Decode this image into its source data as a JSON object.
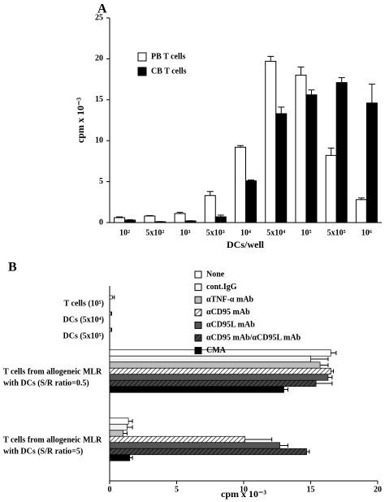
{
  "chart_data": [
    {
      "type": "bar",
      "title": "A",
      "x_label": "DCs/well",
      "y_label": "cpm x 10⁻³",
      "categories": [
        "10²",
        "5x10²",
        "10³",
        "5x10³",
        "10⁴",
        "5x10⁴",
        "10⁵",
        "5x10⁵",
        "10⁶"
      ],
      "series": [
        {
          "name": "PB T cells",
          "color": "#ffffff",
          "values": [
            0.6,
            0.8,
            1.1,
            3.3,
            9.2,
            19.7,
            18.0,
            8.2,
            2.8
          ],
          "errors": [
            0.1,
            0.05,
            0.15,
            0.5,
            0.2,
            0.6,
            1.0,
            0.9,
            0.2
          ]
        },
        {
          "name": "CB T cells",
          "color": "#000000",
          "values": [
            0.3,
            0.1,
            0.2,
            0.7,
            5.1,
            13.3,
            15.6,
            17.1,
            14.6
          ],
          "errors": [
            0.05,
            0.02,
            0.02,
            0.2,
            0.1,
            0.8,
            0.6,
            0.6,
            2.3
          ]
        }
      ],
      "ylim": [
        0,
        25
      ],
      "yticks": [
        0,
        5,
        10,
        15,
        20,
        25
      ],
      "grid": false,
      "legend": "top-left"
    },
    {
      "type": "hbar",
      "title": "B",
      "x_label": "cpm x 10⁻³",
      "categories": [
        [
          "T cells (10⁵)"
        ],
        [
          "DCs (5x10⁴)"
        ],
        [
          "DCs (5x10⁵)"
        ],
        [
          "T cells from allogeneic MLR",
          "with DCs (S/R ratio=0.5)"
        ],
        [
          "T cells from allogeneic MLR",
          "with DCs (S/R ratio=5)"
        ]
      ],
      "series": [
        {
          "name": "None",
          "color": "#ffffff",
          "hatch": false,
          "values": [
            0.2,
            0.1,
            0.1,
            16.5,
            1.4
          ],
          "errors": [
            0.15,
            0.05,
            0.05,
            0.4,
            0.3
          ]
        },
        {
          "name": "cont.IgG",
          "color": "#f2f2f2",
          "hatch": false,
          "values": [
            null,
            null,
            null,
            15.0,
            1.3
          ],
          "errors": [
            null,
            null,
            null,
            1.3,
            0.4
          ]
        },
        {
          "name": "αTNF-α mAb",
          "color": "#bdbdbd",
          "hatch": false,
          "values": [
            null,
            null,
            null,
            15.7,
            1.0
          ],
          "errors": [
            null,
            null,
            null,
            0.6,
            0.3
          ]
        },
        {
          "name": "αCD95 mAb",
          "color": "#ffffff",
          "hatch": true,
          "values": [
            null,
            null,
            null,
            16.5,
            10.1
          ],
          "errors": [
            null,
            null,
            null,
            0.2,
            2.0
          ]
        },
        {
          "name": "αCD95L mAb",
          "color": "#555555",
          "hatch": false,
          "values": [
            null,
            null,
            null,
            16.3,
            12.7
          ],
          "errors": [
            null,
            null,
            null,
            0.3,
            0.6
          ]
        },
        {
          "name": "αCD95 mAb/αCD95L mAb",
          "color": "#444444",
          "hatch": true,
          "values": [
            null,
            null,
            null,
            15.4,
            14.7
          ],
          "errors": [
            null,
            null,
            null,
            1.2,
            0.2
          ]
        },
        {
          "name": "CMA",
          "color": "#000000",
          "hatch": false,
          "values": [
            null,
            null,
            null,
            13.0,
            1.5
          ],
          "errors": [
            null,
            null,
            null,
            0.3,
            0.2
          ]
        }
      ],
      "xlim": [
        0,
        20
      ],
      "xticks": [
        0,
        5,
        10,
        15,
        20
      ],
      "grid": false,
      "legend": "top-right"
    }
  ]
}
